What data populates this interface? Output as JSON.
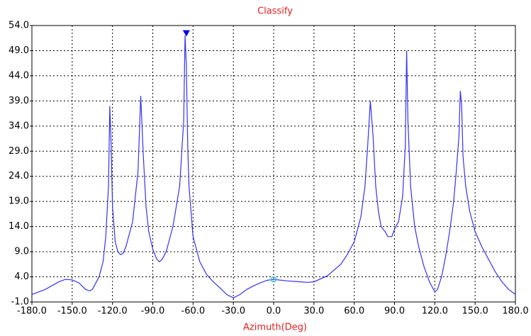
{
  "chart_data": {
    "type": "line",
    "title": "Classify",
    "x_label": "Azimuth(Deg)",
    "x": [
      -180,
      -170,
      -160,
      -155,
      -150,
      -145,
      -140,
      -137,
      -135,
      -130,
      -127,
      -125,
      -123,
      -122,
      -121,
      -120,
      -118,
      -116,
      -114,
      -112,
      -110,
      -105,
      -101,
      -99,
      -97,
      -95,
      -93,
      -90,
      -87,
      -85,
      -83,
      -80,
      -75,
      -70,
      -67,
      -66,
      -65,
      -64,
      -63,
      -60,
      -55,
      -50,
      -45,
      -40,
      -35,
      -30,
      -25,
      -20,
      -15,
      -10,
      -5,
      0,
      10,
      20,
      25,
      30,
      40,
      50,
      55,
      60,
      65,
      68,
      70,
      72,
      74,
      76,
      78,
      80,
      83,
      85,
      88,
      90,
      93,
      96,
      98,
      99,
      100,
      102,
      105,
      108,
      112,
      116,
      120,
      122,
      125,
      128,
      131,
      134,
      136,
      138,
      139,
      140,
      141,
      143,
      146,
      150,
      155,
      160,
      165,
      170,
      175,
      180
    ],
    "series": [
      {
        "name": "Classify",
        "color": "#3333ee",
        "values": [
          0.5,
          1.5,
          3.0,
          3.5,
          3.4,
          2.8,
          1.5,
          1.2,
          1.5,
          4,
          7,
          12,
          22,
          38,
          30,
          18,
          11,
          9,
          8.4,
          8.7,
          10,
          15,
          25,
          40,
          28,
          18,
          13,
          9.5,
          7.5,
          7,
          7.5,
          9,
          14,
          22,
          35,
          52,
          46,
          30,
          22,
          12,
          7,
          4.5,
          3,
          1.8,
          0.5,
          -0.2,
          0.5,
          1.5,
          2.2,
          2.8,
          3.3,
          3.5,
          3.2,
          3,
          2.9,
          3,
          4.2,
          6.5,
          8.5,
          11,
          16,
          22,
          30,
          39,
          32,
          22,
          17,
          14,
          13,
          12,
          12,
          13.5,
          15,
          20,
          30,
          49,
          35,
          22,
          14,
          10,
          6,
          3,
          1,
          1.5,
          4,
          8,
          13,
          19,
          25,
          32,
          41,
          38,
          28,
          22,
          17,
          13,
          10,
          7.5,
          5,
          3,
          1.5,
          0.5
        ]
      }
    ],
    "markers": [
      {
        "x": -65,
        "y": 52.5,
        "color": "#0000ee"
      },
      {
        "x": 0,
        "y": 3.5,
        "color": "#33cccc"
      }
    ],
    "xlim": [
      -180,
      180
    ],
    "xticks": [
      {
        "value": -180,
        "label": "-180.0"
      },
      {
        "value": -150,
        "label": "-150.0"
      },
      {
        "value": -120,
        "label": "-120.0"
      },
      {
        "value": -90,
        "label": "-90.0"
      },
      {
        "value": -60,
        "label": "-60.0"
      },
      {
        "value": -30,
        "label": "-30.0"
      },
      {
        "value": 0,
        "label": "0.0"
      },
      {
        "value": 30,
        "label": "30.0"
      },
      {
        "value": 60,
        "label": "60.0"
      },
      {
        "value": 90,
        "label": "90.0"
      },
      {
        "value": 120,
        "label": "120.0"
      },
      {
        "value": 150,
        "label": "150.0"
      },
      {
        "value": 180,
        "label": "180.0"
      }
    ],
    "ylim": [
      -1,
      54
    ],
    "yticks": [
      {
        "value": -1,
        "label": "-1.0"
      },
      {
        "value": 4,
        "label": "4.0"
      },
      {
        "value": 9,
        "label": "9.0"
      },
      {
        "value": 14,
        "label": "14.0"
      },
      {
        "value": 19,
        "label": "19.0"
      },
      {
        "value": 24,
        "label": "24.0"
      },
      {
        "value": 29,
        "label": "29.0"
      },
      {
        "value": 34,
        "label": "34.0"
      },
      {
        "value": 39,
        "label": "39.0"
      },
      {
        "value": 44,
        "label": "44.0"
      },
      {
        "value": 49,
        "label": "49.0"
      },
      {
        "value": 54,
        "label": "54.0"
      }
    ],
    "grid": true
  }
}
